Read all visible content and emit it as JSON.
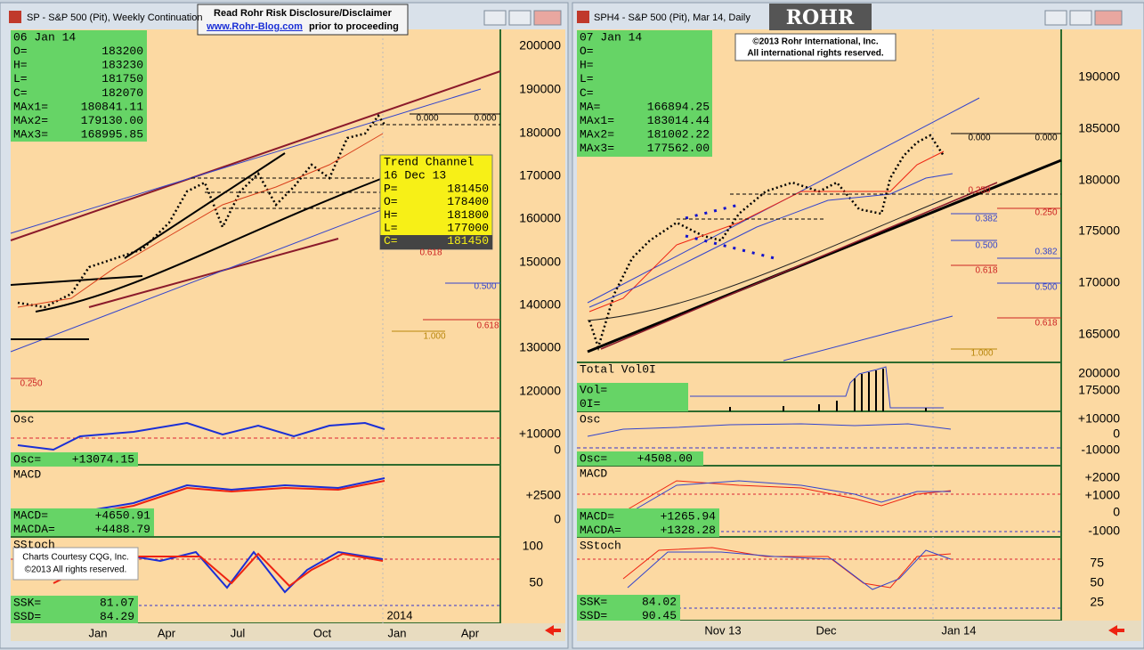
{
  "banner": {
    "line1": "Read Rohr Risk Disclosure/Disclaimer",
    "link": "www.Rohr-Blog.com",
    "line2": "prior to proceeding"
  },
  "left": {
    "title": "SP - S&P 500 (Pit), Weekly Continuation",
    "info_date": "06 Jan 14",
    "info": [
      [
        "O=",
        "183200"
      ],
      [
        "H=",
        "183230"
      ],
      [
        "L=",
        "181750"
      ],
      [
        "C=",
        "182070"
      ],
      [
        "MAx1=",
        "180841.11"
      ],
      [
        "MAx2=",
        "179130.00"
      ],
      [
        "MAx3=",
        "168995.85"
      ]
    ],
    "trend": {
      "title": "Trend Channel",
      "date": "16 Dec 13",
      "rows": [
        [
          "P=",
          "181450"
        ],
        [
          "O=",
          "178400"
        ],
        [
          "H=",
          "181800"
        ],
        [
          "L=",
          "177000"
        ],
        [
          "C=",
          "181450"
        ]
      ]
    },
    "price_axis": [
      "200000",
      "190000",
      "180000",
      "170000",
      "160000",
      "150000",
      "140000",
      "130000",
      "120000"
    ],
    "fib": [
      "0.000",
      "0.000",
      "0.618",
      "0.500",
      "0.618",
      "1.000",
      "0.250"
    ],
    "osc": {
      "label": "Osc",
      "axis": [
        "+10000",
        "0"
      ],
      "readout": [
        [
          "Osc=",
          "+13074.15"
        ]
      ]
    },
    "macd": {
      "label": "MACD",
      "axis": [
        "+2500",
        "0"
      ],
      "readout": [
        [
          "MACD=",
          "+4650.91"
        ],
        [
          "MACDA=",
          "+4488.79"
        ]
      ]
    },
    "sstoch": {
      "label": "SStoch",
      "axis": [
        "100",
        "50"
      ],
      "readout": [
        [
          "SSK=",
          "81.07"
        ],
        [
          "SSD=",
          "84.29"
        ]
      ]
    },
    "courtesy": [
      "Charts Courtesy CQG, Inc.",
      "©2013 All rights reserved."
    ],
    "x_labels": [
      "Jan",
      "Apr",
      "Jul",
      "Oct",
      "Jan",
      "Apr"
    ],
    "year": "2014"
  },
  "right": {
    "title": "SPH4 - S&P 500 (Pit), Mar 14, Daily",
    "logo": "ROHR",
    "copyright": [
      "©2013 Rohr International, Inc.",
      "All international rights reserved."
    ],
    "info_date": "07 Jan 14",
    "info": [
      [
        "O=",
        ""
      ],
      [
        "H=",
        ""
      ],
      [
        "L=",
        ""
      ],
      [
        "C=",
        ""
      ],
      [
        "MA=",
        "166894.25"
      ],
      [
        "MAx1=",
        "183014.44"
      ],
      [
        "MAx2=",
        "181002.22"
      ],
      [
        "MAx3=",
        "177562.00"
      ]
    ],
    "price_axis": [
      "190000",
      "185000",
      "180000",
      "175000",
      "170000",
      "165000"
    ],
    "fib": [
      "0.000",
      "0.000",
      "0.250",
      "0.382",
      "0.250",
      "0.500",
      "0.382",
      "0.618",
      "0.500",
      "0.618",
      "1.000"
    ],
    "vol": {
      "label": "Total Vol0I",
      "axis": [
        "200000",
        "175000"
      ],
      "readout": [
        [
          "Vol=",
          ""
        ],
        [
          "0I=",
          ""
        ]
      ]
    },
    "osc": {
      "label": "Osc",
      "axis": [
        "+10000",
        "0",
        "-10000"
      ],
      "readout": [
        [
          "Osc=",
          "+4508.00"
        ]
      ]
    },
    "macd": {
      "label": "MACD",
      "axis": [
        "+2000",
        "+1000",
        "0",
        "-1000"
      ],
      "readout": [
        [
          "MACD=",
          "+1265.94"
        ],
        [
          "MACDA=",
          "+1328.28"
        ]
      ]
    },
    "sstoch": {
      "label": "SStoch",
      "axis": [
        "75",
        "50",
        "25"
      ],
      "readout": [
        [
          "SSK=",
          "84.02"
        ],
        [
          "SSD=",
          "90.45"
        ]
      ]
    },
    "x_labels": [
      "Nov 13",
      "Dec",
      "Jan 14"
    ]
  }
}
